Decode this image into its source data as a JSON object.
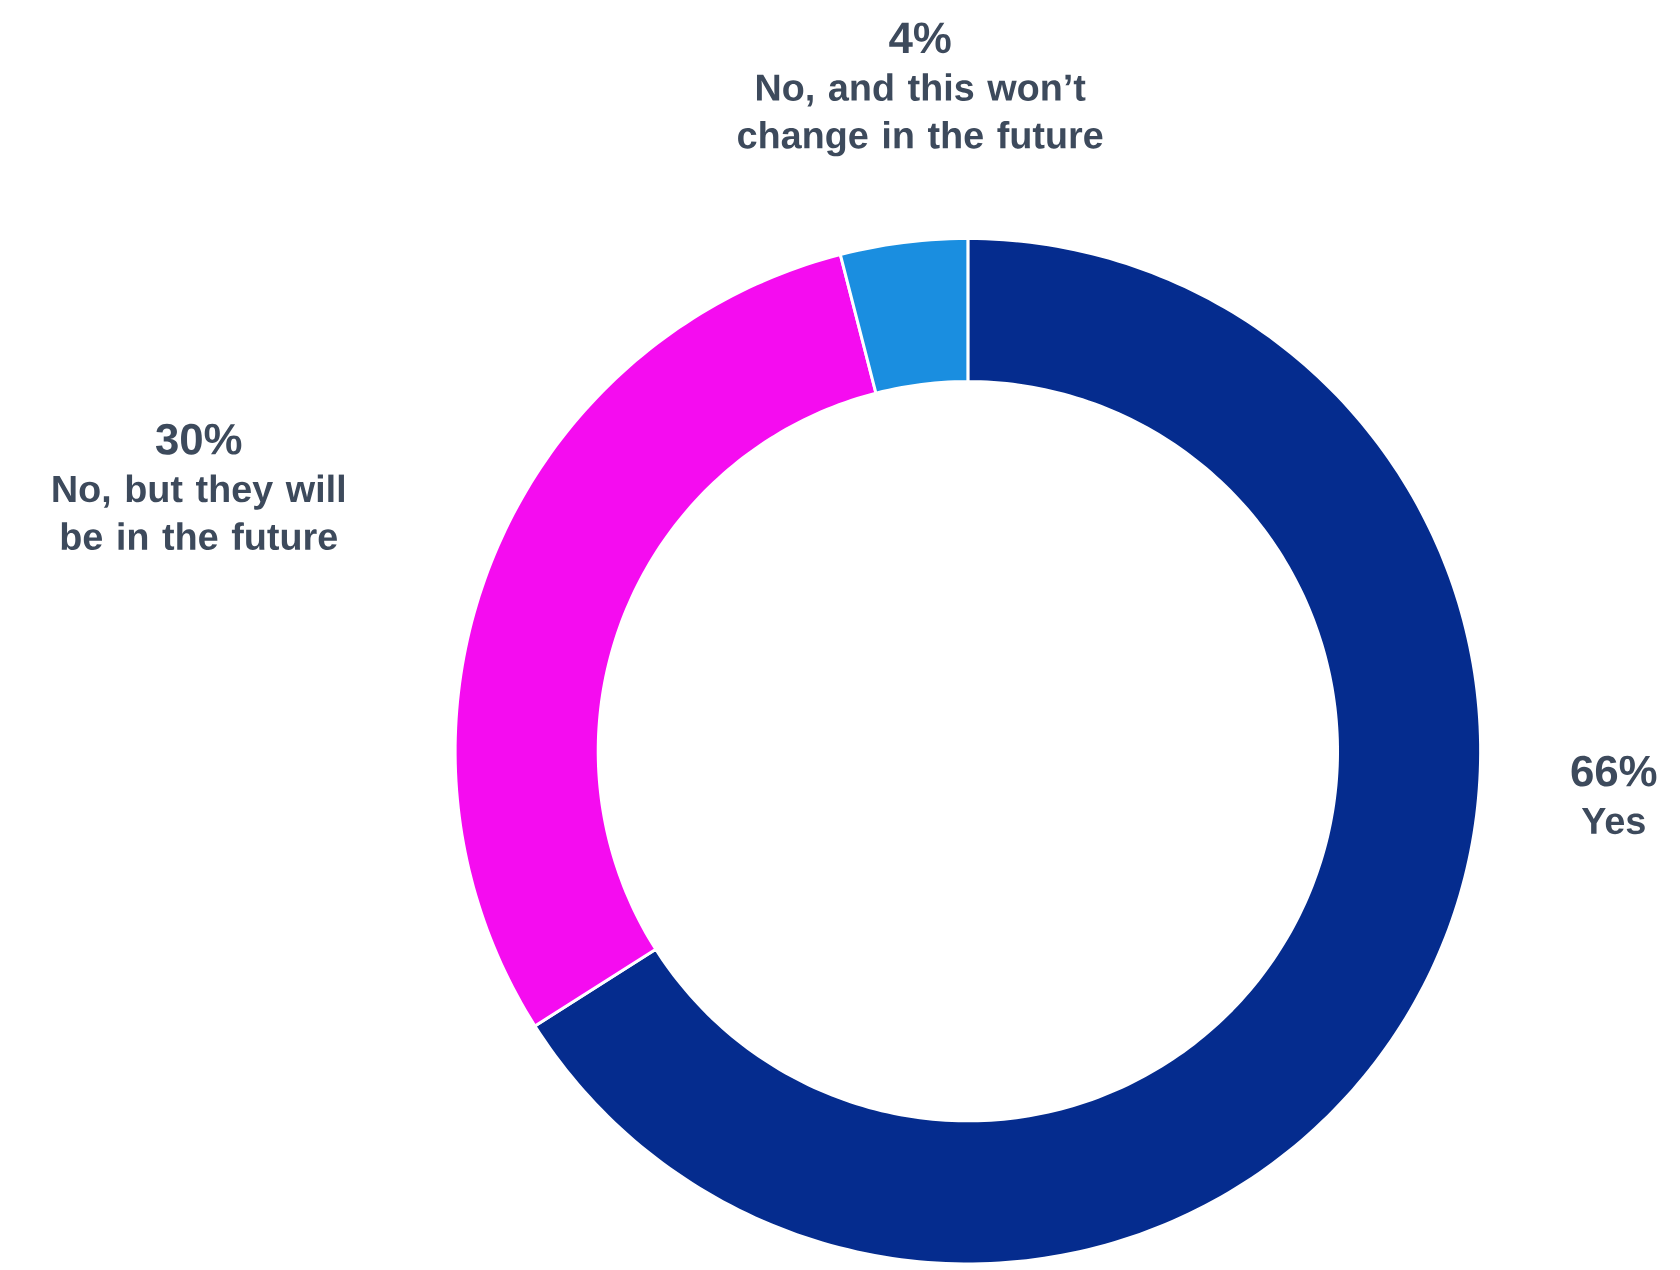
{
  "chart_data": {
    "type": "donut",
    "categories": [
      "Yes",
      "No, but they will be in the future",
      "No, and this won’t change in the future"
    ],
    "values": [
      66,
      30,
      4
    ],
    "colors": [
      "#052c8e",
      "#f50cf0",
      "#1a8ee0"
    ],
    "value_labels": [
      "66%",
      "30%",
      "4%"
    ]
  }
}
